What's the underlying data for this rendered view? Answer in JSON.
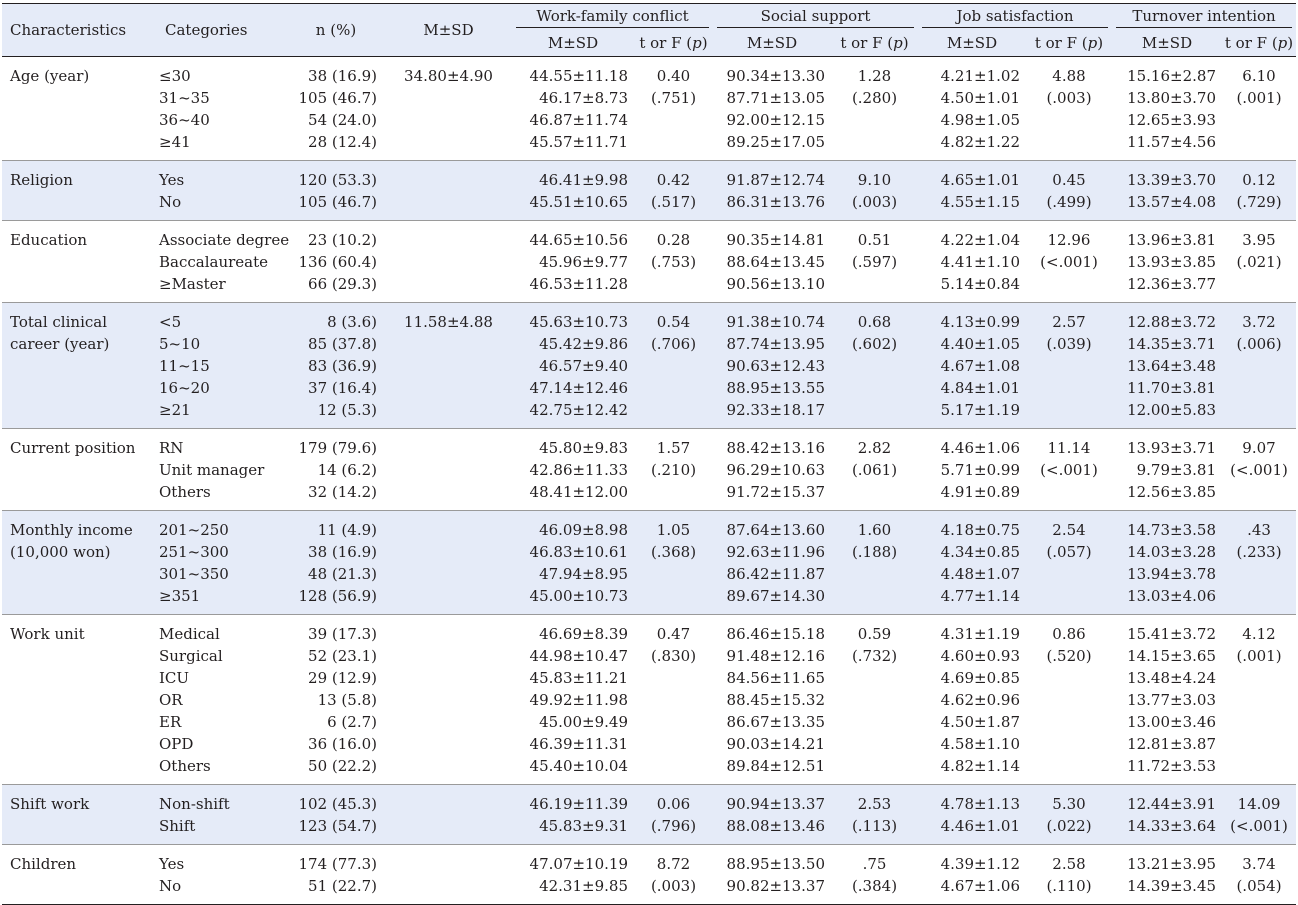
{
  "header": {
    "characteristics": "Characteristics",
    "categories": "Categories",
    "n_pct": "n (%)",
    "msd": "M±SD",
    "groups": [
      "Work-family conflict",
      "Social support",
      "Job satisfaction",
      "Turnover intention"
    ],
    "sub_msd": "M±SD",
    "sub_stat": "t or F (",
    "sub_p": "p",
    "sub_close": ")"
  },
  "rows": [
    {
      "characteristic": "Age (year)",
      "categories": [
        "≤30",
        "31~35",
        "36~40",
        "≥41"
      ],
      "n": [
        "38 (16.9)",
        "105 (46.7)",
        "54 (24.0)",
        "28 (12.4)"
      ],
      "msd": "34.80±4.90",
      "wfc": [
        "44.55±11.18",
        "46.17±8.73",
        "46.87±11.74",
        "45.57±11.71"
      ],
      "wfc_stat": [
        "0.40",
        "(.751)"
      ],
      "ss": [
        "90.34±13.30",
        "87.71±13.05",
        "92.00±12.15",
        "89.25±17.05"
      ],
      "ss_stat": [
        "1.28",
        "(.280)"
      ],
      "js": [
        "4.21±1.02",
        "4.50±1.01",
        "4.98±1.05",
        "4.82±1.22"
      ],
      "js_stat": [
        "4.88",
        "(.003)"
      ],
      "ti": [
        "15.16±2.87",
        "13.80±3.70",
        "12.65±3.93",
        "11.57±4.56"
      ],
      "ti_stat": [
        "6.10",
        "(.001)"
      ],
      "shade": false
    },
    {
      "characteristic": "Religion",
      "categories": [
        "Yes",
        "No"
      ],
      "n": [
        "120 (53.3)",
        "105 (46.7)"
      ],
      "msd": "",
      "wfc": [
        "46.41±9.98",
        "45.51±10.65"
      ],
      "wfc_stat": [
        "0.42",
        "(.517)"
      ],
      "ss": [
        "91.87±12.74",
        "86.31±13.76"
      ],
      "ss_stat": [
        "9.10",
        "(.003)"
      ],
      "js": [
        "4.65±1.01",
        "4.55±1.15"
      ],
      "js_stat": [
        "0.45",
        "(.499)"
      ],
      "ti": [
        "13.39±3.70",
        "13.57±4.08"
      ],
      "ti_stat": [
        "0.12",
        "(.729)"
      ],
      "shade": true
    },
    {
      "characteristic": "Education",
      "categories": [
        "Associate degree",
        "Baccalaureate",
        "≥Master"
      ],
      "n": [
        "23 (10.2)",
        "136 (60.4)",
        "66 (29.3)"
      ],
      "msd": "",
      "wfc": [
        "44.65±10.56",
        "45.96±9.77",
        "46.53±11.28"
      ],
      "wfc_stat": [
        "0.28",
        "(.753)"
      ],
      "ss": [
        "90.35±14.81",
        "88.64±13.45",
        "90.56±13.10"
      ],
      "ss_stat": [
        "0.51",
        "(.597)"
      ],
      "js": [
        "4.22±1.04",
        "4.41±1.10",
        "5.14±0.84"
      ],
      "js_stat": [
        "12.96",
        "(<.001)"
      ],
      "ti": [
        "13.96±3.81",
        "13.93±3.85",
        "12.36±3.77"
      ],
      "ti_stat": [
        "3.95",
        "(.021)"
      ],
      "shade": false
    },
    {
      "characteristic": "Total clinical career (year)",
      "categories": [
        "<5",
        "5~10",
        "11~15",
        "16~20",
        "≥21"
      ],
      "n": [
        "8 (3.6)",
        "85 (37.8)",
        "83 (36.9)",
        "37 (16.4)",
        "12 (5.3)"
      ],
      "msd": "11.58±4.88",
      "wfc": [
        "45.63±10.73",
        "45.42±9.86",
        "46.57±9.40",
        "47.14±12.46",
        "42.75±12.42"
      ],
      "wfc_stat": [
        "0.54",
        "(.706)"
      ],
      "ss": [
        "91.38±10.74",
        "87.74±13.95",
        "90.63±12.43",
        "88.95±13.55",
        "92.33±18.17"
      ],
      "ss_stat": [
        "0.68",
        "(.602)"
      ],
      "js": [
        "4.13±0.99",
        "4.40±1.05",
        "4.67±1.08",
        "4.84±1.01",
        "5.17±1.19"
      ],
      "js_stat": [
        "2.57",
        "(.039)"
      ],
      "ti": [
        "12.88±3.72",
        "14.35±3.71",
        "13.64±3.48",
        "11.70±3.81",
        "12.00±5.83"
      ],
      "ti_stat": [
        "3.72",
        "(.006)"
      ],
      "shade": true
    },
    {
      "characteristic": "Current position",
      "categories": [
        "RN",
        "Unit manager",
        "Others"
      ],
      "n": [
        "179 (79.6)",
        "14 (6.2)",
        "32 (14.2)"
      ],
      "msd": "",
      "wfc": [
        "45.80±9.83",
        "42.86±11.33",
        "48.41±12.00"
      ],
      "wfc_stat": [
        "1.57",
        "(.210)"
      ],
      "ss": [
        "88.42±13.16",
        "96.29±10.63",
        "91.72±15.37"
      ],
      "ss_stat": [
        "2.82",
        "(.061)"
      ],
      "js": [
        "4.46±1.06",
        "5.71±0.99",
        "4.91±0.89"
      ],
      "js_stat": [
        "11.14",
        "(<.001)"
      ],
      "ti": [
        "13.93±3.71",
        "9.79±3.81",
        "12.56±3.85"
      ],
      "ti_stat": [
        "9.07",
        "(<.001)"
      ],
      "shade": false
    },
    {
      "characteristic": "Monthly income (10,000 won)",
      "categories": [
        "201~250",
        "251~300",
        "301~350",
        "≥351"
      ],
      "n": [
        "11 (4.9)",
        "38 (16.9)",
        "48 (21.3)",
        "128 (56.9)"
      ],
      "msd": "",
      "wfc": [
        "46.09±8.98",
        "46.83±10.61",
        "47.94±8.95",
        "45.00±10.73"
      ],
      "wfc_stat": [
        "1.05",
        "(.368)"
      ],
      "ss": [
        "87.64±13.60",
        "92.63±11.96",
        "86.42±11.87",
        "89.67±14.30"
      ],
      "ss_stat": [
        "1.60",
        "(.188)"
      ],
      "js": [
        "4.18±0.75",
        "4.34±0.85",
        "4.48±1.07",
        "4.77±1.14"
      ],
      "js_stat": [
        "2.54",
        "(.057)"
      ],
      "ti": [
        "14.73±3.58",
        "14.03±3.28",
        "13.94±3.78",
        "13.03±4.06"
      ],
      "ti_stat": [
        ".43",
        "(.233)"
      ],
      "shade": true
    },
    {
      "characteristic": "Work unit",
      "categories": [
        "Medical",
        "Surgical",
        "ICU",
        "OR",
        "ER",
        "OPD",
        "Others"
      ],
      "n": [
        "39 (17.3)",
        "52 (23.1)",
        "29 (12.9)",
        "13 (5.8)",
        "6 (2.7)",
        "36 (16.0)",
        "50 (22.2)"
      ],
      "msd": "",
      "wfc": [
        "46.69±8.39",
        "44.98±10.47",
        "45.83±11.21",
        "49.92±11.98",
        "45.00±9.49",
        "46.39±11.31",
        "45.40±10.04"
      ],
      "wfc_stat": [
        "0.47",
        "(.830)"
      ],
      "ss": [
        "86.46±15.18",
        "91.48±12.16",
        "84.56±11.65",
        "88.45±15.32",
        "86.67±13.35",
        "90.03±14.21",
        "89.84±12.51"
      ],
      "ss_stat": [
        "0.59",
        "(.732)"
      ],
      "js": [
        "4.31±1.19",
        "4.60±0.93",
        "4.69±0.85",
        "4.62±0.96",
        "4.50±1.87",
        "4.58±1.10",
        "4.82±1.14"
      ],
      "js_stat": [
        "0.86",
        "(.520)"
      ],
      "ti": [
        "15.41±3.72",
        "14.15±3.65",
        "13.48±4.24",
        "13.77±3.03",
        "13.00±3.46",
        "12.81±3.87",
        "11.72±3.53"
      ],
      "ti_stat": [
        "4.12",
        "(.001)"
      ],
      "shade": false
    },
    {
      "characteristic": "Shift work",
      "categories": [
        "Non-shift",
        "Shift"
      ],
      "n": [
        "102 (45.3)",
        "123 (54.7)"
      ],
      "msd": "",
      "wfc": [
        "46.19±11.39",
        "45.83±9.31"
      ],
      "wfc_stat": [
        "0.06",
        "(.796)"
      ],
      "ss": [
        "90.94±13.37",
        "88.08±13.46"
      ],
      "ss_stat": [
        "2.53",
        "(.113)"
      ],
      "js": [
        "4.78±1.13",
        "4.46±1.01"
      ],
      "js_stat": [
        "5.30",
        "(.022)"
      ],
      "ti": [
        "12.44±3.91",
        "14.33±3.64"
      ],
      "ti_stat": [
        "14.09",
        "(<.001)"
      ],
      "shade": true
    },
    {
      "characteristic": "Children",
      "categories": [
        "Yes",
        "No"
      ],
      "n": [
        "174 (77.3)",
        "51 (22.7)"
      ],
      "msd": "",
      "wfc": [
        "47.07±10.19",
        "42.31±9.85"
      ],
      "wfc_stat": [
        "8.72",
        "(.003)"
      ],
      "ss": [
        "88.95±13.50",
        "90.82±13.37"
      ],
      "ss_stat": [
        ".75",
        "(.384)"
      ],
      "js": [
        "4.39±1.12",
        "4.67±1.06"
      ],
      "js_stat": [
        "2.58",
        "(.110)"
      ],
      "ti": [
        "13.21±3.95",
        "14.39±3.45"
      ],
      "ti_stat": [
        "3.74",
        "(.054)"
      ],
      "shade": false
    }
  ]
}
